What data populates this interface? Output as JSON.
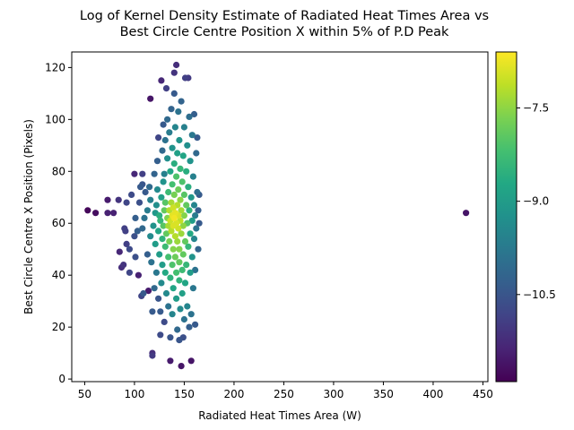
{
  "chart_data": {
    "type": "scatter",
    "title_line1": "Log of Kernel Density Estimate of Radiated Heat Times Area vs",
    "title_line2": "Best Circle Centre Position X within 5% of P.D Peak",
    "xlabel": "Radiated Heat Times Area (W)",
    "ylabel": "Best Circle Centre X Position (Pixels)",
    "xlim": [
      37,
      455
    ],
    "ylim": [
      -1,
      126
    ],
    "xticks": [
      50,
      100,
      150,
      200,
      250,
      300,
      350,
      400,
      450
    ],
    "yticks": [
      0,
      20,
      40,
      60,
      80,
      100,
      120
    ],
    "colorbar": {
      "range": [
        -11.9,
        -6.6
      ],
      "ticks": [
        -10.5,
        -9.0,
        -7.5
      ],
      "tick_labels": [
        "−10.5",
        "−9.0",
        "−7.5"
      ],
      "colormap": "viridis"
    },
    "grid": false,
    "legend": "none",
    "points": [
      [
        53,
        65,
        -11.8
      ],
      [
        61,
        64,
        -11.7
      ],
      [
        73,
        69,
        -11.5
      ],
      [
        73,
        64,
        -11.4
      ],
      [
        79,
        64,
        -11.4
      ],
      [
        84,
        69,
        -11.1
      ],
      [
        85,
        49,
        -11.3
      ],
      [
        87,
        43,
        -11.2
      ],
      [
        89,
        44,
        -11.1
      ],
      [
        90,
        58,
        -10.9
      ],
      [
        91,
        57,
        -10.9
      ],
      [
        92,
        68,
        -10.8
      ],
      [
        92,
        52,
        -10.9
      ],
      [
        95,
        41,
        -10.8
      ],
      [
        95,
        50,
        -10.7
      ],
      [
        97,
        71,
        -10.7
      ],
      [
        100,
        79,
        -11.3
      ],
      [
        100,
        55,
        -10.6
      ],
      [
        101,
        62,
        -10.3
      ],
      [
        101,
        47,
        -10.6
      ],
      [
        103,
        57,
        -10.3
      ],
      [
        104,
        40,
        -11.4
      ],
      [
        105,
        68,
        -10.6
      ],
      [
        106,
        74,
        -10.4
      ],
      [
        107,
        32,
        -10.8
      ],
      [
        108,
        79,
        -10.9
      ],
      [
        108,
        75,
        -10.5
      ],
      [
        108,
        58,
        -10.1
      ],
      [
        109,
        33,
        -10.4
      ],
      [
        110,
        62,
        -9.9
      ],
      [
        111,
        72,
        -10.4
      ],
      [
        113,
        65,
        -9.7
      ],
      [
        113,
        48,
        -10.3
      ],
      [
        114,
        34,
        -11.5
      ],
      [
        115,
        74,
        -10.1
      ],
      [
        116,
        108,
        -11.6
      ],
      [
        116,
        69,
        -9.6
      ],
      [
        116,
        55,
        -9.4
      ],
      [
        117,
        45,
        -9.9
      ],
      [
        118,
        10,
        -11.2
      ],
      [
        118,
        9,
        -11.0
      ],
      [
        118,
        26,
        -10.4
      ],
      [
        119,
        59,
        -9.2
      ],
      [
        120,
        79,
        -10.2
      ],
      [
        120,
        35,
        -10.1
      ],
      [
        121,
        64,
        -9.1
      ],
      [
        121,
        52,
        -9.0
      ],
      [
        122,
        41,
        -9.8
      ],
      [
        122,
        67,
        -9.3
      ],
      [
        123,
        73,
        -9.4
      ],
      [
        123,
        84,
        -10.3
      ],
      [
        124,
        93,
        -10.8
      ],
      [
        124,
        31,
        -10.5
      ],
      [
        124,
        57,
        -8.8
      ],
      [
        125,
        63,
        -8.6
      ],
      [
        125,
        48,
        -9.0
      ],
      [
        126,
        17,
        -10.7
      ],
      [
        126,
        26,
        -10.4
      ],
      [
        126,
        61,
        -8.4
      ],
      [
        127,
        70,
        -8.9
      ],
      [
        127,
        115,
        -11.3
      ],
      [
        127,
        37,
        -9.4
      ],
      [
        128,
        54,
        -8.5
      ],
      [
        128,
        88,
        -10.1
      ],
      [
        128,
        44,
        -9.0
      ],
      [
        129,
        59,
        -8.0
      ],
      [
        129,
        76,
        -9.2
      ],
      [
        129,
        98,
        -10.4
      ],
      [
        130,
        65,
        -7.9
      ],
      [
        130,
        22,
        -10.7
      ],
      [
        130,
        79,
        -9.6
      ],
      [
        131,
        51,
        -8.3
      ],
      [
        131,
        92,
        -9.9
      ],
      [
        131,
        41,
        -8.7
      ],
      [
        131,
        68,
        -8.0
      ],
      [
        132,
        112,
        -10.9
      ],
      [
        132,
        56,
        -7.9
      ],
      [
        132,
        33,
        -9.4
      ],
      [
        133,
        62,
        -7.6
      ],
      [
        133,
        85,
        -9.3
      ],
      [
        133,
        100,
        -10.1
      ],
      [
        134,
        47,
        -8.2
      ],
      [
        134,
        72,
        -8.3
      ],
      [
        134,
        28,
        -9.9
      ],
      [
        134,
        59,
        -7.3
      ],
      [
        135,
        65,
        -7.2
      ],
      [
        135,
        95,
        -9.7
      ],
      [
        135,
        53,
        -7.7
      ],
      [
        136,
        7,
        -11.5
      ],
      [
        136,
        16,
        -10.5
      ],
      [
        136,
        39,
        -8.5
      ],
      [
        136,
        80,
        -8.8
      ],
      [
        136,
        61,
        -7.0
      ],
      [
        137,
        68,
        -7.3
      ],
      [
        137,
        57,
        -7.2
      ],
      [
        137,
        104,
        -10.2
      ],
      [
        138,
        44,
        -8.1
      ],
      [
        138,
        75,
        -8.2
      ],
      [
        138,
        63,
        -6.8
      ],
      [
        138,
        25,
        -9.5
      ],
      [
        138,
        89,
        -9.2
      ],
      [
        139,
        50,
        -7.6
      ],
      [
        139,
        59,
        -6.9
      ],
      [
        139,
        66,
        -7.0
      ],
      [
        139,
        35,
        -8.8
      ],
      [
        140,
        118,
        -11.1
      ],
      [
        140,
        71,
        -7.7
      ],
      [
        140,
        62,
        -6.7
      ],
      [
        140,
        110,
        -10.4
      ],
      [
        140,
        83,
        -8.6
      ],
      [
        141,
        55,
        -7.2
      ],
      [
        141,
        47,
        -7.8
      ],
      [
        141,
        64,
        -6.8
      ],
      [
        141,
        97,
        -9.5
      ],
      [
        142,
        121,
        -11.2
      ],
      [
        142,
        60,
        -6.9
      ],
      [
        142,
        31,
        -9.0
      ],
      [
        142,
        78,
        -8.1
      ],
      [
        142,
        41,
        -8.2
      ],
      [
        143,
        67,
        -7.2
      ],
      [
        143,
        53,
        -7.4
      ],
      [
        143,
        87,
        -8.9
      ],
      [
        143,
        19,
        -10.1
      ],
      [
        144,
        63,
        -6.9
      ],
      [
        144,
        103,
        -9.9
      ],
      [
        144,
        58,
        -7.0
      ],
      [
        144,
        73,
        -7.8
      ],
      [
        145,
        45,
        -7.9
      ],
      [
        145,
        15,
        -10.5
      ],
      [
        145,
        50,
        -7.6
      ],
      [
        145,
        92,
        -9.2
      ],
      [
        145,
        38,
        -8.5
      ],
      [
        146,
        69,
        -7.5
      ],
      [
        146,
        61,
        -7.1
      ],
      [
        146,
        27,
        -9.4
      ],
      [
        146,
        81,
        -8.4
      ],
      [
        147,
        5,
        -11.6
      ],
      [
        147,
        56,
        -7.4
      ],
      [
        147,
        107,
        -10.2
      ],
      [
        147,
        65,
        -7.3
      ],
      [
        148,
        42,
        -8.3
      ],
      [
        148,
        76,
        -8.1
      ],
      [
        148,
        33,
        -8.9
      ],
      [
        149,
        59,
        -7.5
      ],
      [
        149,
        86,
        -8.8
      ],
      [
        149,
        16,
        -10.6
      ],
      [
        149,
        48,
        -7.9
      ],
      [
        150,
        63,
        -7.6
      ],
      [
        150,
        97,
        -9.6
      ],
      [
        150,
        71,
        -8.0
      ],
      [
        150,
        23,
        -9.9
      ],
      [
        151,
        53,
        -7.9
      ],
      [
        151,
        116,
        -10.9
      ],
      [
        151,
        37,
        -8.8
      ],
      [
        152,
        67,
        -7.9
      ],
      [
        152,
        80,
        -8.6
      ],
      [
        152,
        44,
        -8.4
      ],
      [
        153,
        60,
        -8.0
      ],
      [
        153,
        90,
        -9.3
      ],
      [
        153,
        28,
        -9.5
      ],
      [
        154,
        116,
        -11.0
      ],
      [
        154,
        74,
        -8.6
      ],
      [
        154,
        51,
        -8.4
      ],
      [
        155,
        65,
        -8.5
      ],
      [
        155,
        101,
        -10.0
      ],
      [
        155,
        20,
        -10.3
      ],
      [
        156,
        56,
        -8.7
      ],
      [
        156,
        84,
        -9.2
      ],
      [
        156,
        41,
        -9.0
      ],
      [
        157,
        7,
        -11.6
      ],
      [
        157,
        70,
        -9.1
      ],
      [
        157,
        25,
        -9.9
      ],
      [
        158,
        61,
        -9.0
      ],
      [
        158,
        94,
        -9.8
      ],
      [
        158,
        47,
        -9.2
      ],
      [
        159,
        78,
        -9.6
      ],
      [
        159,
        35,
        -9.8
      ],
      [
        160,
        67,
        -9.5
      ],
      [
        160,
        54,
        -9.5
      ],
      [
        160,
        102,
        -10.3
      ],
      [
        161,
        21,
        -10.4
      ],
      [
        161,
        63,
        -9.7
      ],
      [
        161,
        42,
        -9.9
      ],
      [
        162,
        87,
        -10.1
      ],
      [
        162,
        58,
        -9.9
      ],
      [
        163,
        93,
        -10.4
      ],
      [
        163,
        72,
        -10.0
      ],
      [
        164,
        65,
        -10.3
      ],
      [
        164,
        50,
        -10.2
      ],
      [
        165,
        71,
        -10.4
      ],
      [
        165,
        60,
        -10.4
      ],
      [
        433,
        64,
        -11.6
      ]
    ]
  }
}
